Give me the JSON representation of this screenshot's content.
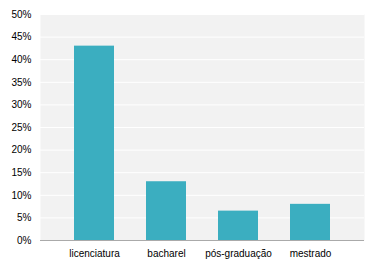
{
  "chart_data": {
    "type": "bar",
    "categories": [
      "licenciatura",
      "bacharel",
      "pós-graduação",
      "mestrado"
    ],
    "values": [
      0.43,
      0.13,
      0.065,
      0.08
    ],
    "color": "#3baec0",
    "ylim": [
      0,
      0.5
    ],
    "yticks": [
      {
        "value": 0.0,
        "label": "0%"
      },
      {
        "value": 0.05,
        "label": "5%"
      },
      {
        "value": 0.1,
        "label": "10%"
      },
      {
        "value": 0.15,
        "label": "15%"
      },
      {
        "value": 0.2,
        "label": "20%"
      },
      {
        "value": 0.25,
        "label": "25%"
      },
      {
        "value": 0.3,
        "label": "30%"
      },
      {
        "value": 0.35,
        "label": "35%"
      },
      {
        "value": 0.4,
        "label": "40%"
      },
      {
        "value": 0.45,
        "label": "45%"
      },
      {
        "value": 0.5,
        "label": "50%"
      }
    ],
    "grid": true
  }
}
